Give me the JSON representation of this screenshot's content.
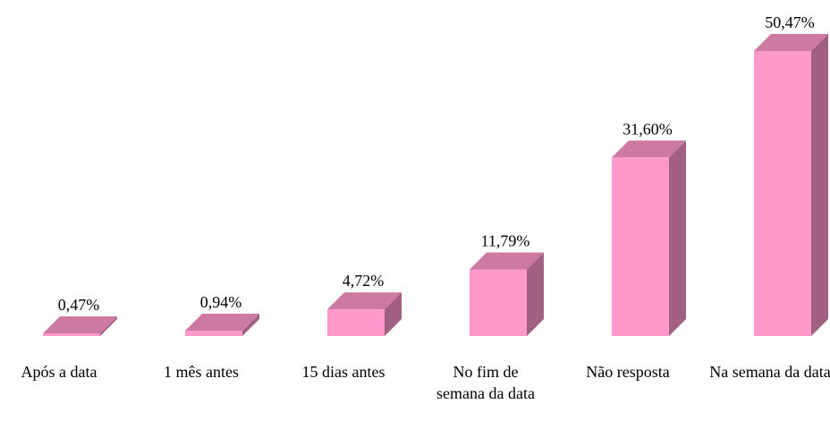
{
  "chart_data": {
    "type": "bar",
    "categories": [
      "Após a data",
      "1 mês antes",
      "15 dias antes",
      "No fim de semana da data",
      "Não resposta",
      "Na semana da data"
    ],
    "values": [
      0.47,
      0.94,
      4.72,
      11.79,
      31.6,
      50.47
    ],
    "value_labels": [
      "0,47%",
      "0,94%",
      "4,72%",
      "11,79%",
      "31,60%",
      "50,47%"
    ],
    "color": "#ff99cc"
  }
}
